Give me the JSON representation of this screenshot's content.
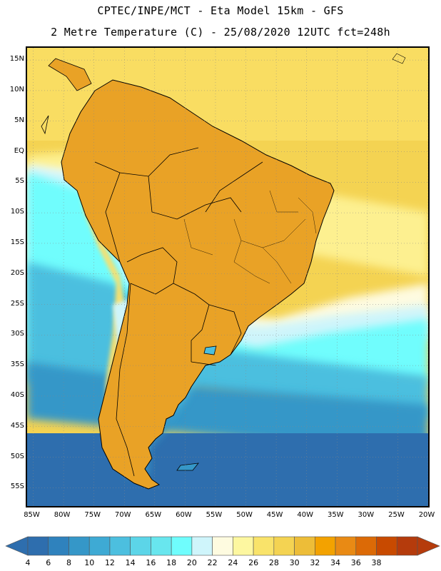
{
  "header": {
    "line1": "CPTEC/INPE/MCT -  Eta Model 15km - GFS",
    "line2": "2 Metre Temperature (C) - 25/08/2020 12UTC fct=248h"
  },
  "map": {
    "region": "South America",
    "variable": "2 Metre Temperature",
    "units": "C",
    "lon_range": [
      -86,
      -20
    ],
    "lat_range": [
      -58,
      17
    ],
    "lat_ticks": [
      "15N",
      "10N",
      "5N",
      "EQ",
      "5S",
      "10S",
      "15S",
      "20S",
      "25S",
      "30S",
      "35S",
      "40S",
      "45S",
      "50S",
      "55S"
    ],
    "lat_values": [
      15,
      10,
      5,
      0,
      -5,
      -10,
      -15,
      -20,
      -25,
      -30,
      -35,
      -40,
      -45,
      -50,
      -55
    ],
    "lon_ticks": [
      "85W",
      "80W",
      "75W",
      "70W",
      "65W",
      "60W",
      "55W",
      "50W",
      "45W",
      "40W",
      "35W",
      "30W",
      "25W",
      "20W"
    ],
    "lon_values": [
      -85,
      -80,
      -75,
      -70,
      -65,
      -60,
      -55,
      -50,
      -45,
      -40,
      -35,
      -30,
      -25,
      -20
    ],
    "gridlines": "dotted"
  },
  "colorbar": {
    "levels": [
      "4",
      "6",
      "8",
      "10",
      "12",
      "14",
      "16",
      "18",
      "20",
      "22",
      "24",
      "26",
      "28",
      "30",
      "32",
      "34",
      "36",
      "38"
    ],
    "colors": [
      "#2e6eae",
      "#2f82bd",
      "#3597c8",
      "#3eaad4",
      "#4cbfdf",
      "#5cd5e8",
      "#68e6ee",
      "#6ffdfd",
      "#cff5fb",
      "#fefbe0",
      "#fdf7a0",
      "#f9e36a",
      "#f4d352",
      "#edbd38",
      "#f3a200",
      "#e98a14",
      "#dc6a06",
      "#c84a00",
      "#b53b0c"
    ],
    "low_color": "#2e6eae",
    "high_color": "#b53b0c"
  },
  "legend_colors": {
    "ocean_deep": "#2e6eae",
    "ocean_mid": "#3597c8",
    "ocean_warm": "#5cd5e8",
    "tropical_sea": "#fbd56a",
    "land_hot": "#d8640a"
  }
}
